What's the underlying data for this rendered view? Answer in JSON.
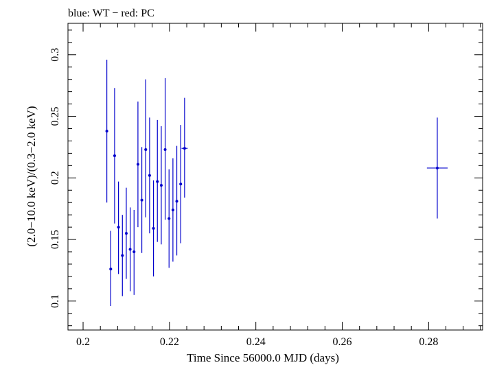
{
  "chart_data": {
    "type": "scatter",
    "title": "blue: WT − red: PC",
    "xlabel": "Time Since 56000.0 MJD (days)",
    "ylabel": "(2.0−10.0 keV)/(0.3−2.0 keV)",
    "xlim": [
      0.1965,
      0.2925
    ],
    "ylim": [
      0.0765,
      0.3255
    ],
    "x_ticks": [
      0.2,
      0.22,
      0.24,
      0.26,
      0.28
    ],
    "x_tick_labels": [
      "0.2",
      "0.22",
      "0.24",
      "0.26",
      "0.28"
    ],
    "y_ticks": [
      0.1,
      0.15,
      0.2,
      0.25,
      0.3
    ],
    "y_tick_labels": [
      "0.1",
      "0.15",
      "0.2",
      "0.25",
      "0.3"
    ],
    "grid": false,
    "series": [
      {
        "color": "#0000cc",
        "points": [
          {
            "x": 0.2055,
            "y": 0.238,
            "yerr_low": 0.18,
            "yerr_high": 0.296,
            "xerr": 0.0003
          },
          {
            "x": 0.2064,
            "y": 0.126,
            "yerr_low": 0.096,
            "yerr_high": 0.157,
            "xerr": 0.0003
          },
          {
            "x": 0.2073,
            "y": 0.218,
            "yerr_low": 0.163,
            "yerr_high": 0.273,
            "xerr": 0.0003
          },
          {
            "x": 0.2082,
            "y": 0.16,
            "yerr_low": 0.122,
            "yerr_high": 0.197,
            "xerr": 0.0003
          },
          {
            "x": 0.2091,
            "y": 0.137,
            "yerr_low": 0.104,
            "yerr_high": 0.17,
            "xerr": 0.0003
          },
          {
            "x": 0.21,
            "y": 0.155,
            "yerr_low": 0.118,
            "yerr_high": 0.192,
            "xerr": 0.0003
          },
          {
            "x": 0.2109,
            "y": 0.142,
            "yerr_low": 0.108,
            "yerr_high": 0.176,
            "xerr": 0.0003
          },
          {
            "x": 0.2118,
            "y": 0.14,
            "yerr_low": 0.105,
            "yerr_high": 0.174,
            "xerr": 0.0003
          },
          {
            "x": 0.2127,
            "y": 0.211,
            "yerr_low": 0.16,
            "yerr_high": 0.262,
            "xerr": 0.0003
          },
          {
            "x": 0.2136,
            "y": 0.182,
            "yerr_low": 0.139,
            "yerr_high": 0.225,
            "xerr": 0.0003
          },
          {
            "x": 0.2145,
            "y": 0.223,
            "yerr_low": 0.168,
            "yerr_high": 0.28,
            "xerr": 0.0003
          },
          {
            "x": 0.2154,
            "y": 0.202,
            "yerr_low": 0.155,
            "yerr_high": 0.249,
            "xerr": 0.0003
          },
          {
            "x": 0.2163,
            "y": 0.159,
            "yerr_low": 0.12,
            "yerr_high": 0.198,
            "xerr": 0.0003
          },
          {
            "x": 0.2172,
            "y": 0.197,
            "yerr_low": 0.148,
            "yerr_high": 0.247,
            "xerr": 0.0003
          },
          {
            "x": 0.2181,
            "y": 0.194,
            "yerr_low": 0.146,
            "yerr_high": 0.242,
            "xerr": 0.0003
          },
          {
            "x": 0.219,
            "y": 0.223,
            "yerr_low": 0.166,
            "yerr_high": 0.281,
            "xerr": 0.0003
          },
          {
            "x": 0.2199,
            "y": 0.167,
            "yerr_low": 0.127,
            "yerr_high": 0.207,
            "xerr": 0.0003
          },
          {
            "x": 0.2208,
            "y": 0.174,
            "yerr_low": 0.132,
            "yerr_high": 0.216,
            "xerr": 0.0003
          },
          {
            "x": 0.2217,
            "y": 0.181,
            "yerr_low": 0.137,
            "yerr_high": 0.226,
            "xerr": 0.0003
          },
          {
            "x": 0.2226,
            "y": 0.195,
            "yerr_low": 0.147,
            "yerr_high": 0.243,
            "xerr": 0.0003
          },
          {
            "x": 0.2235,
            "y": 0.224,
            "yerr_low": 0.184,
            "yerr_high": 0.265,
            "xerr": 0.0007
          },
          {
            "x": 0.282,
            "y": 0.208,
            "yerr_low": 0.167,
            "yerr_high": 0.249,
            "xerr": 0.0024
          }
        ]
      }
    ]
  }
}
